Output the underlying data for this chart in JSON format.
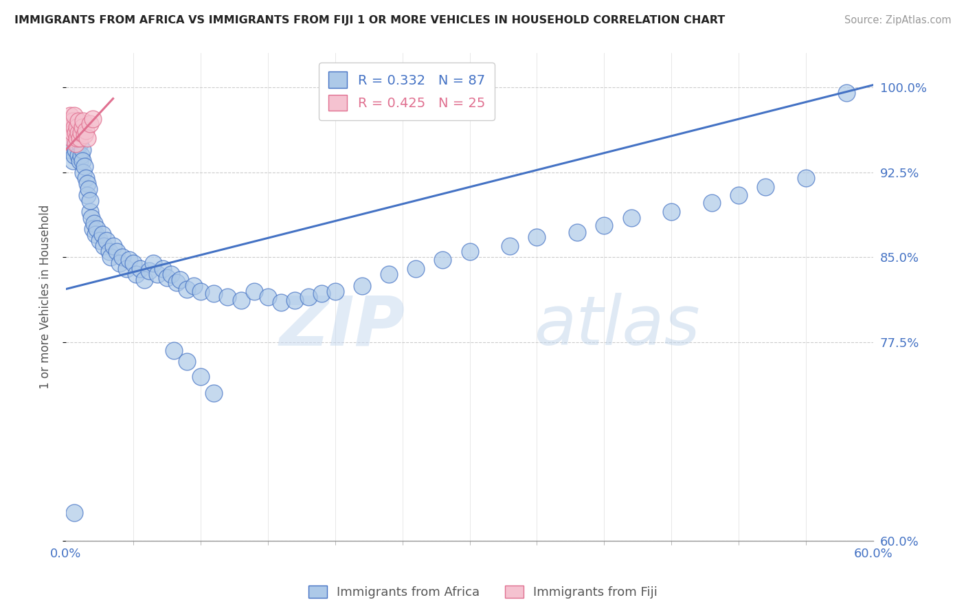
{
  "title": "IMMIGRANTS FROM AFRICA VS IMMIGRANTS FROM FIJI 1 OR MORE VEHICLES IN HOUSEHOLD CORRELATION CHART",
  "source": "Source: ZipAtlas.com",
  "ylabel_label": "1 or more Vehicles in Household",
  "legend_africa": "Immigrants from Africa",
  "legend_fiji": "Immigrants from Fiji",
  "R_africa": 0.332,
  "N_africa": 87,
  "R_fiji": 0.425,
  "N_fiji": 25,
  "color_africa": "#adc9e8",
  "color_fiji": "#f5c2d0",
  "line_africa": "#4472c4",
  "line_fiji": "#e07090",
  "watermark_zip": "ZIP",
  "watermark_atlas": "atlas",
  "xlim_min": 0.0,
  "xlim_max": 0.6,
  "ylim_min": 0.6,
  "ylim_max": 1.03,
  "x_ticks": [
    0.0,
    0.6
  ],
  "x_tick_labels": [
    "0.0%",
    "60.0%"
  ],
  "y_ticks": [
    0.6,
    0.775,
    0.85,
    0.925,
    1.0
  ],
  "y_tick_labels": [
    "60.0%",
    "77.5%",
    "85.0%",
    "92.5%",
    "100.0%"
  ],
  "africa_x": [
    0.002,
    0.003,
    0.004,
    0.005,
    0.005,
    0.006,
    0.006,
    0.007,
    0.008,
    0.009,
    0.009,
    0.01,
    0.01,
    0.011,
    0.012,
    0.012,
    0.013,
    0.014,
    0.015,
    0.016,
    0.016,
    0.017,
    0.018,
    0.018,
    0.019,
    0.02,
    0.021,
    0.022,
    0.023,
    0.025,
    0.027,
    0.028,
    0.03,
    0.032,
    0.033,
    0.035,
    0.038,
    0.04,
    0.042,
    0.045,
    0.047,
    0.05,
    0.052,
    0.055,
    0.058,
    0.062,
    0.065,
    0.068,
    0.072,
    0.075,
    0.078,
    0.082,
    0.085,
    0.09,
    0.095,
    0.1,
    0.11,
    0.12,
    0.13,
    0.14,
    0.15,
    0.16,
    0.17,
    0.18,
    0.19,
    0.2,
    0.22,
    0.24,
    0.26,
    0.28,
    0.3,
    0.33,
    0.35,
    0.38,
    0.4,
    0.42,
    0.45,
    0.48,
    0.5,
    0.52,
    0.55,
    0.58,
    0.006,
    0.08,
    0.09,
    0.1,
    0.11
  ],
  "africa_y": [
    0.945,
    0.955,
    0.945,
    0.935,
    0.95,
    0.94,
    0.96,
    0.945,
    0.95,
    0.94,
    0.955,
    0.935,
    0.95,
    0.94,
    0.945,
    0.935,
    0.925,
    0.93,
    0.92,
    0.915,
    0.905,
    0.91,
    0.89,
    0.9,
    0.885,
    0.875,
    0.88,
    0.87,
    0.875,
    0.865,
    0.87,
    0.86,
    0.865,
    0.855,
    0.85,
    0.86,
    0.855,
    0.845,
    0.85,
    0.84,
    0.848,
    0.845,
    0.835,
    0.84,
    0.83,
    0.838,
    0.845,
    0.835,
    0.84,
    0.832,
    0.835,
    0.828,
    0.83,
    0.822,
    0.825,
    0.82,
    0.818,
    0.815,
    0.812,
    0.82,
    0.815,
    0.81,
    0.812,
    0.815,
    0.818,
    0.82,
    0.825,
    0.835,
    0.84,
    0.848,
    0.855,
    0.86,
    0.868,
    0.872,
    0.878,
    0.885,
    0.89,
    0.898,
    0.905,
    0.912,
    0.92,
    0.995,
    0.625,
    0.768,
    0.758,
    0.745,
    0.73
  ],
  "fiji_x": [
    0.001,
    0.002,
    0.003,
    0.003,
    0.004,
    0.004,
    0.005,
    0.005,
    0.006,
    0.006,
    0.007,
    0.007,
    0.008,
    0.008,
    0.009,
    0.009,
    0.01,
    0.011,
    0.012,
    0.013,
    0.014,
    0.015,
    0.016,
    0.018,
    0.02
  ],
  "fiji_y": [
    0.965,
    0.97,
    0.96,
    0.975,
    0.965,
    0.955,
    0.97,
    0.96,
    0.965,
    0.975,
    0.96,
    0.95,
    0.965,
    0.955,
    0.96,
    0.97,
    0.955,
    0.96,
    0.965,
    0.97,
    0.958,
    0.962,
    0.955,
    0.968,
    0.972
  ],
  "africa_line_x0": 0.0,
  "africa_line_x1": 0.6,
  "africa_line_y0": 0.822,
  "africa_line_y1": 1.002,
  "fiji_line_x0": 0.0,
  "fiji_line_x1": 0.035,
  "fiji_line_y0": 0.945,
  "fiji_line_y1": 0.99
}
